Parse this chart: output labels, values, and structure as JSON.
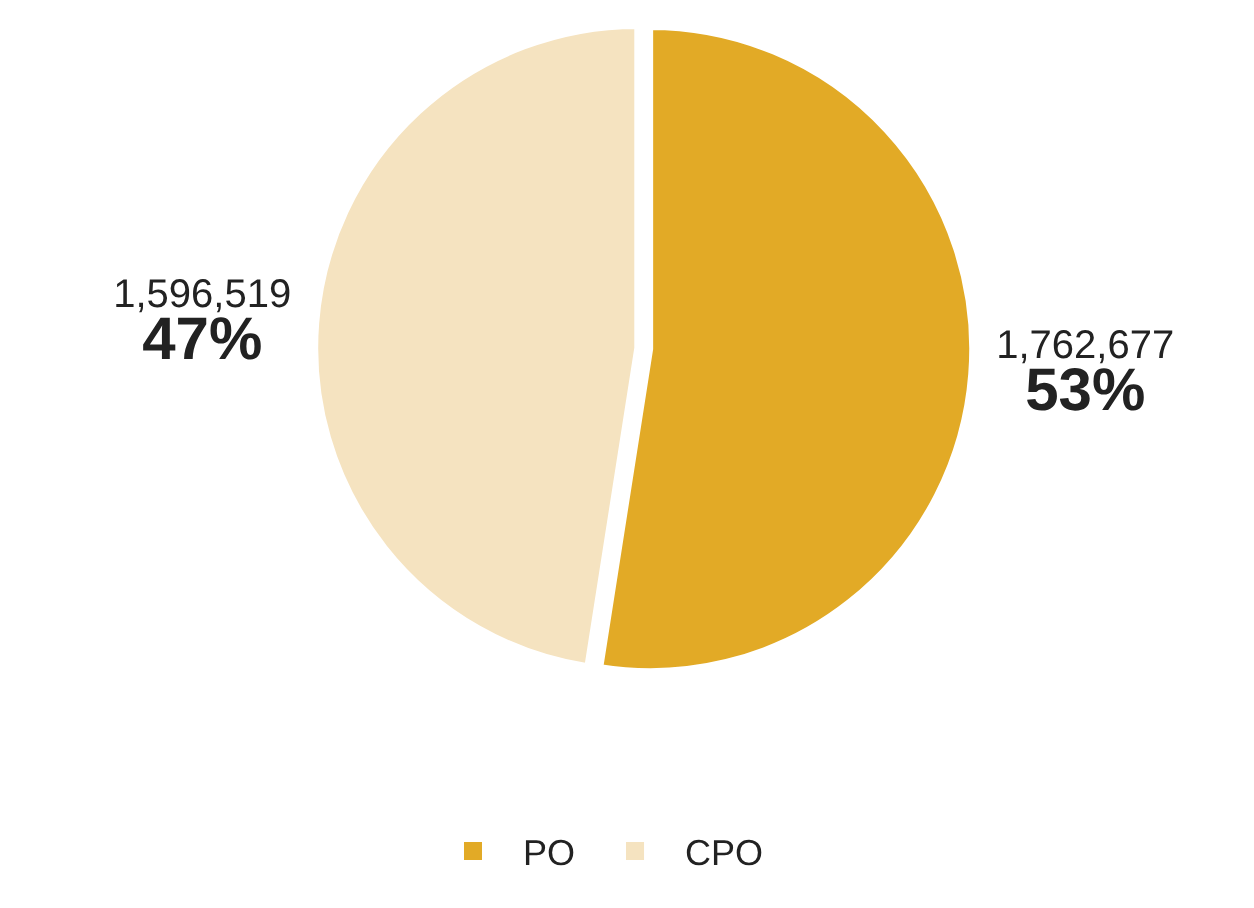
{
  "chart_data": {
    "type": "pie",
    "categories": [
      "PO",
      "CPO"
    ],
    "values": [
      1762677,
      1596519
    ],
    "colors": [
      "#e2aa26",
      "#f5e3c0"
    ],
    "value_labels": [
      "1,762,677\n53%",
      "1,596,519\n47%"
    ],
    "legend": "bottom"
  }
}
